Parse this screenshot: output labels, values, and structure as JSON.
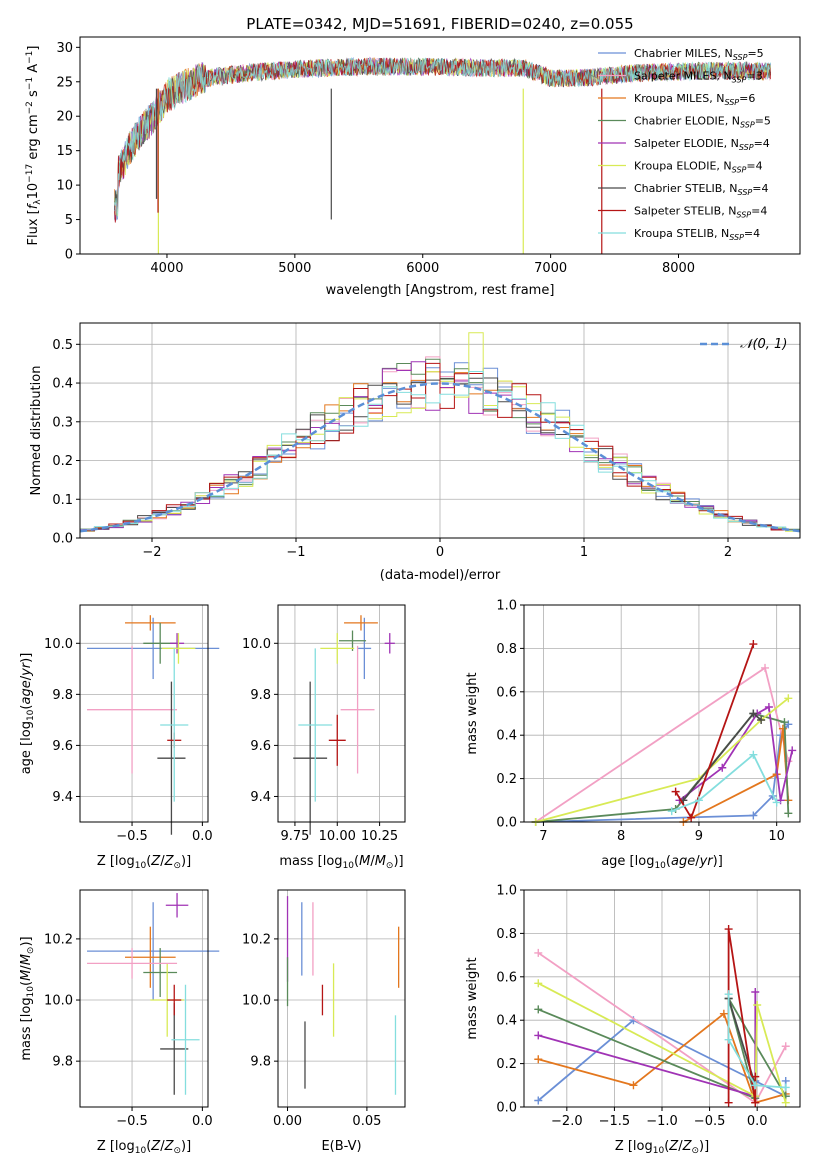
{
  "title": "PLATE=0342, MJD=51691, FIBERID=0240, z=0.055",
  "colors": {
    "chabrier_miles": "#6b8fd6",
    "salpeter_miles": "#f2a0c4",
    "kroupa_miles": "#e3771e",
    "chabrier_elodie": "#5a8a5a",
    "salpeter_elodie": "#a033b5",
    "kroupa_elodie": "#d8ea55",
    "chabrier_stelib": "#4a4a4a",
    "salpeter_stelib": "#b51515",
    "kroupa_stelib": "#84dede",
    "gaussian": "#5b8fd6"
  },
  "chart_data": [
    {
      "id": "spectrum",
      "type": "line",
      "title": "PLATE=0342, MJD=51691, FIBERID=0240, z=0.055",
      "xlabel": "wavelength [Angstrom, rest frame]",
      "ylabel": "Flux [f_λ10^-17 erg cm^-2 s^-1 A^-1]",
      "xlim": [
        3320,
        8950
      ],
      "ylim": [
        0,
        31.5
      ],
      "xticks": [
        4000,
        5000,
        6000,
        7000,
        8000
      ],
      "yticks": [
        0,
        5,
        10,
        15,
        20,
        25,
        30
      ],
      "grid": false,
      "legend_position": "right",
      "series": [
        {
          "name": "Chabrier MILES, N_SSP=5",
          "name_main": "Chabrier MILES, N",
          "name_sub": "SSP",
          "name_tail": "=5",
          "color": "#6b8fd6"
        },
        {
          "name": "Salpeter MILES, N_SSP=3",
          "name_main": "Salpeter MILES, N",
          "name_sub": "SSP",
          "name_tail": "=3",
          "color": "#f2a0c4"
        },
        {
          "name": "Kroupa MILES, N_SSP=6",
          "name_main": "Kroupa MILES, N",
          "name_sub": "SSP",
          "name_tail": "=6",
          "color": "#e3771e"
        },
        {
          "name": "Chabrier ELODIE, N_SSP=5",
          "name_main": "Chabrier ELODIE, N",
          "name_sub": "SSP",
          "name_tail": "=5",
          "color": "#5a8a5a"
        },
        {
          "name": "Salpeter ELODIE, N_SSP=4",
          "name_main": "Salpeter ELODIE, N",
          "name_sub": "SSP",
          "name_tail": "=4",
          "color": "#a033b5"
        },
        {
          "name": "Kroupa ELODIE, N_SSP=4",
          "name_main": "Kroupa ELODIE, N",
          "name_sub": "SSP",
          "name_tail": "=4",
          "color": "#d8ea55"
        },
        {
          "name": "Chabrier STELIB, N_SSP=4",
          "name_main": "Chabrier STELIB, N",
          "name_sub": "SSP",
          "name_tail": "=4",
          "color": "#4a4a4a"
        },
        {
          "name": "Salpeter STELIB, N_SSP=4",
          "name_main": "Salpeter STELIB, N",
          "name_sub": "SSP",
          "name_tail": "=4",
          "color": "#b51515"
        },
        {
          "name": "Kroupa STELIB, N_SSP=4",
          "name_main": "Kroupa STELIB, N",
          "name_sub": "SSP",
          "name_tail": "=4",
          "color": "#84dede"
        }
      ],
      "continuum": {
        "x": [
          3600,
          3700,
          3800,
          3900,
          4000,
          4100,
          4200,
          4300,
          4400,
          4500,
          4700,
          5000,
          5500,
          6000,
          6500,
          6800,
          7000,
          7200,
          7400,
          7700,
          8000,
          8300,
          8500,
          8700
        ],
        "y": [
          11,
          15,
          18,
          20,
          23,
          24,
          25,
          25.5,
          25.8,
          26,
          26.4,
          26.8,
          27.2,
          27.2,
          27,
          27,
          25.5,
          25.5,
          25.8,
          26.3,
          26.5,
          26.6,
          26.6,
          26.5
        ]
      },
      "drops": [
        {
          "x": 3933,
          "y": 0,
          "color": "#d8ea55"
        },
        {
          "x": 6786,
          "y": 0,
          "color": "#d8ea55"
        },
        {
          "x": 7400,
          "y": 0,
          "color": "#b51515"
        },
        {
          "x": 5285,
          "y": 5,
          "color": "#4a4a4a"
        },
        {
          "x": 3918,
          "y": 8,
          "color": "#4a4a4a"
        },
        {
          "x": 3930,
          "y": 6,
          "color": "#b51515"
        }
      ]
    },
    {
      "id": "residuals",
      "type": "histogram",
      "xlabel": "(data-model)/error",
      "ylabel": "Normed distribution",
      "xlim": [
        -2.5,
        2.5
      ],
      "ylim": [
        0,
        0.555
      ],
      "xticks": [
        -2,
        -1,
        0,
        1,
        2
      ],
      "yticks": [
        0.0,
        0.1,
        0.2,
        0.3,
        0.4,
        0.5
      ],
      "grid": true,
      "legend": {
        "label": "𝒩(0, 1)",
        "position": "top-right"
      },
      "bin_width": 0.1,
      "peak_values": {
        "kroupa_elodie": 0.53,
        "salpeter_elodie": 0.455
      }
    },
    {
      "id": "age_vs_Z",
      "type": "errorbar",
      "xlabel": "Z [log10(Z/Z⊙)]",
      "ylabel": "age [log10(age/yr)]",
      "xlim": [
        -0.87,
        0.04
      ],
      "ylim": [
        9.3,
        10.15
      ],
      "xticks": [
        -0.5,
        0.0
      ],
      "yticks": [
        9.4,
        9.6,
        9.8,
        10.0
      ],
      "grid": true,
      "points": [
        {
          "x": -0.35,
          "y": 9.98,
          "xerr": 0.47,
          "yerr": 0.12,
          "color": "#6b8fd6"
        },
        {
          "x": -0.37,
          "y": 10.08,
          "xerr": 0.18,
          "yerr": 0.03,
          "color": "#e3771e"
        },
        {
          "x": -0.3,
          "y": 10.0,
          "xerr": 0.12,
          "yerr": 0.08,
          "color": "#5a8a5a"
        },
        {
          "x": -0.18,
          "y": 10.0,
          "xerr": 0.05,
          "yerr": 0.04,
          "color": "#a033b5"
        },
        {
          "x": -0.17,
          "y": 9.98,
          "xerr": 0.12,
          "yerr": 0.06,
          "color": "#d8ea55"
        },
        {
          "x": -0.5,
          "y": 9.74,
          "xerr": 0.32,
          "yerr": 0.25,
          "color": "#f2a0c4"
        },
        {
          "x": -0.22,
          "y": 9.55,
          "xerr": 0.1,
          "yerr": 0.3,
          "color": "#4a4a4a"
        },
        {
          "x": -0.2,
          "y": 9.62,
          "xerr": 0.05,
          "yerr": 0.03,
          "color": "#b51515"
        },
        {
          "x": -0.2,
          "y": 9.68,
          "xerr": 0.1,
          "yerr": 0.3,
          "color": "#84dede"
        }
      ]
    },
    {
      "id": "age_vs_mass",
      "type": "errorbar",
      "xlabel": "mass [log10(M/M⊙)]",
      "ylabel": "",
      "xlim": [
        9.65,
        10.4
      ],
      "ylim": [
        9.3,
        10.15
      ],
      "xticks": [
        9.75,
        10.0,
        10.25
      ],
      "yticks": [
        9.4,
        9.6,
        9.8,
        10.0
      ],
      "grid": true,
      "points": [
        {
          "x": 10.16,
          "y": 9.98,
          "xerr": 0.04,
          "yerr": 0.12,
          "color": "#6b8fd6"
        },
        {
          "x": 10.14,
          "y": 10.08,
          "xerr": 0.1,
          "yerr": 0.03,
          "color": "#e3771e"
        },
        {
          "x": 10.09,
          "y": 10.01,
          "xerr": 0.08,
          "yerr": 0.04,
          "color": "#5a8a5a"
        },
        {
          "x": 10.31,
          "y": 10.0,
          "xerr": 0.03,
          "yerr": 0.04,
          "color": "#a033b5"
        },
        {
          "x": 10.0,
          "y": 9.98,
          "xerr": 0.1,
          "yerr": 0.06,
          "color": "#d8ea55"
        },
        {
          "x": 10.12,
          "y": 9.74,
          "xerr": 0.1,
          "yerr": 0.25,
          "color": "#f2a0c4"
        },
        {
          "x": 9.84,
          "y": 9.55,
          "xerr": 0.1,
          "yerr": 0.3,
          "color": "#4a4a4a"
        },
        {
          "x": 10.0,
          "y": 9.62,
          "xerr": 0.05,
          "yerr": 0.1,
          "color": "#b51515"
        },
        {
          "x": 9.87,
          "y": 9.68,
          "xerr": 0.1,
          "yerr": 0.3,
          "color": "#84dede"
        }
      ]
    },
    {
      "id": "mw_vs_age",
      "type": "line",
      "xlabel": "age [log10(age/yr)]",
      "ylabel": "mass weight",
      "xlim": [
        6.75,
        10.3
      ],
      "ylim": [
        0,
        1
      ],
      "xticks": [
        7,
        8,
        9,
        10
      ],
      "yticks": [
        0.0,
        0.2,
        0.4,
        0.6,
        0.8,
        1.0
      ],
      "grid": true,
      "series": [
        {
          "color": "#6b8fd6",
          "x": [
            6.9,
            9.7,
            9.95,
            10.05,
            10.15
          ],
          "y": [
            0.0,
            0.03,
            0.12,
            0.4,
            0.45
          ]
        },
        {
          "color": "#f2a0c4",
          "x": [
            6.9,
            9.85,
            10.15
          ],
          "y": [
            0.0,
            0.71,
            0.28
          ]
        },
        {
          "color": "#e3771e",
          "x": [
            8.8,
            10.0,
            10.08,
            10.15
          ],
          "y": [
            0.0,
            0.22,
            0.43,
            0.1
          ]
        },
        {
          "color": "#5a8a5a",
          "x": [
            6.9,
            8.7,
            9.7,
            10.1,
            10.15
          ],
          "y": [
            0.0,
            0.06,
            0.5,
            0.46,
            0.04
          ]
        },
        {
          "color": "#a033b5",
          "x": [
            8.75,
            9.3,
            9.75,
            9.9,
            10.05,
            10.2
          ],
          "y": [
            0.1,
            0.25,
            0.5,
            0.53,
            0.1,
            0.33
          ]
        },
        {
          "color": "#d8ea55",
          "x": [
            6.9,
            9.0,
            9.8,
            10.15
          ],
          "y": [
            0.0,
            0.2,
            0.47,
            0.57
          ]
        },
        {
          "color": "#4a4a4a",
          "x": [
            8.8,
            9.7,
            9.8
          ],
          "y": [
            0.1,
            0.5,
            0.47
          ]
        },
        {
          "color": "#b51515",
          "x": [
            8.7,
            8.9,
            9.7
          ],
          "y": [
            0.14,
            0.02,
            0.82
          ]
        },
        {
          "color": "#84dede",
          "x": [
            8.65,
            9.0,
            9.7,
            10.0
          ],
          "y": [
            0.05,
            0.1,
            0.31,
            0.09
          ]
        }
      ]
    },
    {
      "id": "mass_vs_Z",
      "type": "errorbar",
      "xlabel": "Z [log10(Z/Z⊙)]",
      "ylabel": "mass [log10(M/M⊙)]",
      "xlim": [
        -0.87,
        0.04
      ],
      "ylim": [
        9.65,
        10.36
      ],
      "xticks": [
        -0.5,
        0.0
      ],
      "yticks": [
        9.8,
        10.0,
        10.2
      ],
      "grid": true,
      "points": [
        {
          "x": -0.35,
          "y": 10.16,
          "xerr": 0.47,
          "yerr": 0.16,
          "color": "#6b8fd6"
        },
        {
          "x": -0.37,
          "y": 10.14,
          "xerr": 0.18,
          "yerr": 0.1,
          "color": "#e3771e"
        },
        {
          "x": -0.3,
          "y": 10.09,
          "xerr": 0.12,
          "yerr": 0.08,
          "color": "#5a8a5a"
        },
        {
          "x": -0.18,
          "y": 10.31,
          "xerr": 0.08,
          "yerr": 0.04,
          "color": "#a033b5"
        },
        {
          "x": -0.25,
          "y": 10.0,
          "xerr": 0.12,
          "yerr": 0.12,
          "color": "#d8ea55"
        },
        {
          "x": -0.5,
          "y": 10.12,
          "xerr": 0.32,
          "yerr": 0.05,
          "color": "#f2a0c4"
        },
        {
          "x": -0.2,
          "y": 9.84,
          "xerr": 0.1,
          "yerr": 0.15,
          "color": "#4a4a4a"
        },
        {
          "x": -0.2,
          "y": 10.0,
          "xerr": 0.05,
          "yerr": 0.05,
          "color": "#b51515"
        },
        {
          "x": -0.12,
          "y": 9.87,
          "xerr": 0.1,
          "yerr": 0.18,
          "color": "#84dede"
        }
      ]
    },
    {
      "id": "mass_vs_EBV",
      "type": "errorbar",
      "xlabel": "E(B-V)",
      "ylabel": "",
      "xlim": [
        -0.006,
        0.074
      ],
      "ylim": [
        9.65,
        10.36
      ],
      "xticks": [
        0.0,
        0.05
      ],
      "yticks": [
        9.8,
        10.0,
        10.2
      ],
      "grid": true,
      "points": [
        {
          "x": 0.0,
          "y": 10.2,
          "xerr": 0,
          "yerr": 0.14,
          "color": "#a033b5"
        },
        {
          "x": 0.0,
          "y": 10.06,
          "xerr": 0,
          "yerr": 0.08,
          "color": "#5a8a5a"
        },
        {
          "x": 0.009,
          "y": 10.2,
          "xerr": 0,
          "yerr": 0.12,
          "color": "#6b8fd6"
        },
        {
          "x": 0.016,
          "y": 10.2,
          "xerr": 0,
          "yerr": 0.12,
          "color": "#f2a0c4"
        },
        {
          "x": 0.011,
          "y": 9.82,
          "xerr": 0,
          "yerr": 0.11,
          "color": "#4a4a4a"
        },
        {
          "x": 0.022,
          "y": 10.0,
          "xerr": 0,
          "yerr": 0.05,
          "color": "#b51515"
        },
        {
          "x": 0.029,
          "y": 10.0,
          "xerr": 0,
          "yerr": 0.12,
          "color": "#d8ea55"
        },
        {
          "x": 0.068,
          "y": 9.82,
          "xerr": 0,
          "yerr": 0.13,
          "color": "#84dede"
        },
        {
          "x": 0.07,
          "y": 10.14,
          "xerr": 0,
          "yerr": 0.1,
          "color": "#e3771e"
        }
      ]
    },
    {
      "id": "mw_vs_Z",
      "type": "line",
      "xlabel": "Z [log10(Z/Z⊙)]",
      "ylabel": "mass weight",
      "xlim": [
        -2.45,
        0.45
      ],
      "ylim": [
        0,
        1
      ],
      "xticks": [
        -2.0,
        -1.5,
        -1.0,
        -0.5,
        0.0
      ],
      "yticks": [
        0.0,
        0.2,
        0.4,
        0.6,
        0.8,
        1.0
      ],
      "grid": true,
      "series": [
        {
          "color": "#6b8fd6",
          "x": [
            -2.3,
            -1.3,
            -0.02,
            0.3,
            0.3
          ],
          "y": [
            0.03,
            0.4,
            0.12,
            0.05,
            0.12
          ]
        },
        {
          "color": "#f2a0c4",
          "x": [
            -2.3,
            -0.02,
            0.3
          ],
          "y": [
            0.71,
            0.02,
            0.28
          ]
        },
        {
          "color": "#e3771e",
          "x": [
            -2.3,
            -1.3,
            -0.35,
            -0.02,
            0.3
          ],
          "y": [
            0.22,
            0.1,
            0.43,
            0.02,
            0.06
          ]
        },
        {
          "color": "#5a8a5a",
          "x": [
            -2.3,
            -0.02,
            -0.3,
            0.3
          ],
          "y": [
            0.45,
            0.04,
            0.5,
            0.05
          ]
        },
        {
          "color": "#a033b5",
          "x": [
            -2.3,
            -0.02,
            -0.02
          ],
          "y": [
            0.33,
            0.05,
            0.53
          ]
        },
        {
          "color": "#d8ea55",
          "x": [
            -2.3,
            -0.02,
            0.0,
            0.3
          ],
          "y": [
            0.57,
            0.05,
            0.47,
            0.02
          ]
        },
        {
          "color": "#4a4a4a",
          "x": [
            -0.3,
            -0.02
          ],
          "y": [
            0.5,
            0.1
          ]
        },
        {
          "color": "#b51515",
          "x": [
            -0.3,
            -0.3,
            -0.02,
            -0.02
          ],
          "y": [
            0.02,
            0.82,
            0.02,
            0.14
          ]
        },
        {
          "color": "#84dede",
          "x": [
            -0.3,
            -0.3,
            -0.02,
            0.3
          ],
          "y": [
            0.52,
            0.31,
            0.1,
            0.09
          ]
        }
      ]
    }
  ]
}
